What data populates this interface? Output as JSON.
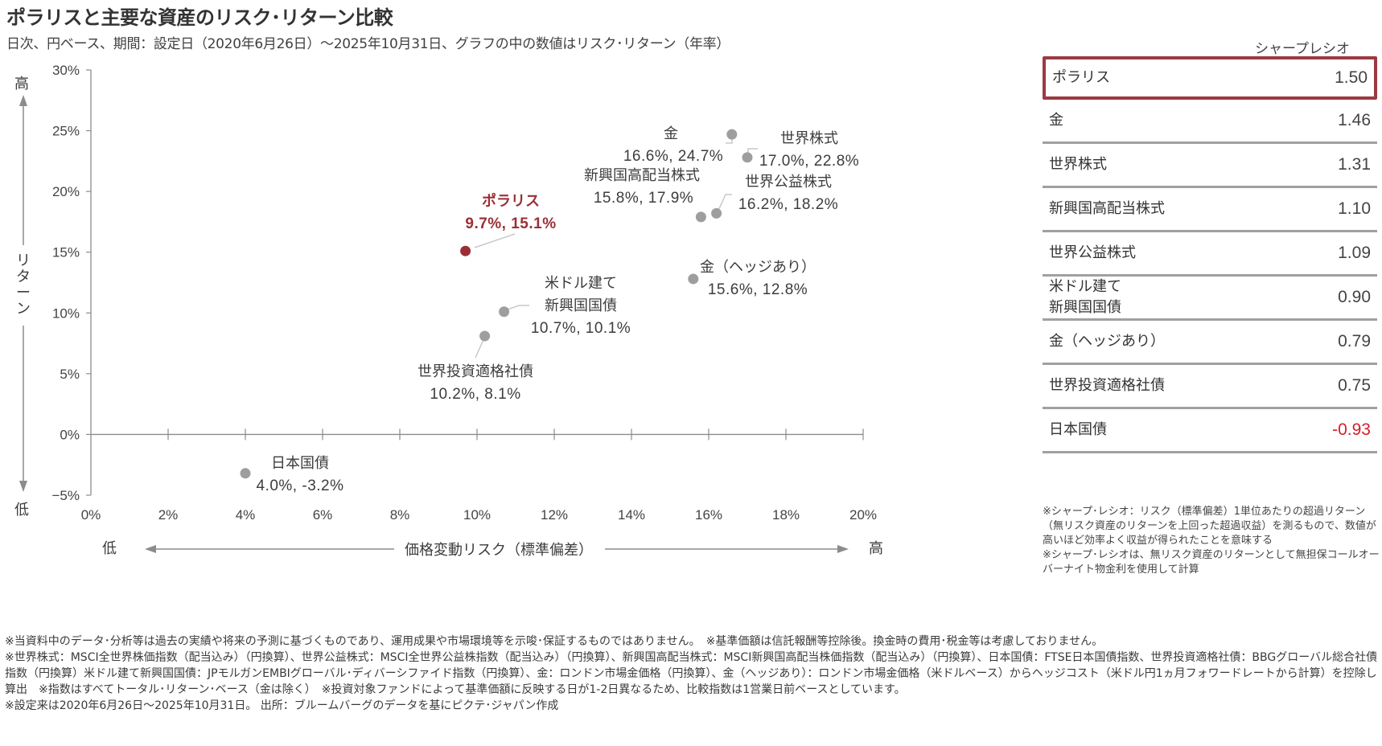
{
  "header": {
    "title": "ポラリスと主要な資産のリスク･リターン比較",
    "subtitle": "日次、円ベース、期間：設定日（2020年6月26日）～2025年10月31日、グラフの中の数値はリスク･リターン（年率）"
  },
  "colors": {
    "highlight": "#9b2f37",
    "point": "#9e9e9e",
    "axis": "#8c8c8c",
    "negative": "#d32027"
  },
  "chart_data": {
    "type": "scatter",
    "title": "ポラリスと主要な資産のリスク･リターン比較",
    "xlabel": "価格変動リスク（標準偏差）",
    "ylabel": "リターン",
    "x_low_label": "低",
    "x_high_label": "高",
    "y_low_label": "低",
    "y_high_label": "高",
    "xlim": [
      0,
      20
    ],
    "ylim": [
      -5,
      30
    ],
    "x_ticks": [
      0,
      2,
      4,
      6,
      8,
      10,
      12,
      14,
      16,
      18,
      20
    ],
    "x_tick_labels": [
      "0%",
      "2%",
      "4%",
      "6%",
      "8%",
      "10%",
      "12%",
      "14%",
      "16%",
      "18%",
      "20%"
    ],
    "y_ticks": [
      30,
      25,
      20,
      15,
      10,
      5,
      0,
      -5
    ],
    "y_tick_labels": [
      "30%",
      "25%",
      "20%",
      "15%",
      "10%",
      "5%",
      "0%",
      "−5%"
    ],
    "grid": false,
    "points": [
      {
        "name": "ポラリス",
        "name_lines": [
          "ポラリス"
        ],
        "risk": 9.7,
        "return": 15.1,
        "label": "9.7%, 15.1%",
        "highlight": true
      },
      {
        "name": "金",
        "name_lines": [
          "金"
        ],
        "risk": 16.6,
        "return": 24.7,
        "label": "16.6%, 24.7%",
        "highlight": false
      },
      {
        "name": "世界株式",
        "name_lines": [
          "世界株式"
        ],
        "risk": 17.0,
        "return": 22.8,
        "label": "17.0%, 22.8%",
        "highlight": false
      },
      {
        "name": "新興国高配当株式",
        "name_lines": [
          "新興国高配当株式"
        ],
        "risk": 15.8,
        "return": 17.9,
        "label": "15.8%, 17.9%",
        "highlight": false
      },
      {
        "name": "世界公益株式",
        "name_lines": [
          "世界公益株式"
        ],
        "risk": 16.2,
        "return": 18.2,
        "label": "16.2%, 18.2%",
        "highlight": false
      },
      {
        "name": "金（ヘッジあり）",
        "name_lines": [
          "金（ヘッジあり）"
        ],
        "risk": 15.6,
        "return": 12.8,
        "label": "15.6%, 12.8%",
        "highlight": false
      },
      {
        "name": "米ドル建て新興国国債",
        "name_lines": [
          "米ドル建て",
          "新興国国債"
        ],
        "risk": 10.7,
        "return": 10.1,
        "label": "10.7%, 10.1%",
        "highlight": false
      },
      {
        "name": "世界投資適格社債",
        "name_lines": [
          "世界投資適格社債"
        ],
        "risk": 10.2,
        "return": 8.1,
        "label": "10.2%, 8.1%",
        "highlight": false
      },
      {
        "name": "日本国債",
        "name_lines": [
          "日本国債"
        ],
        "risk": 4.0,
        "return": -3.2,
        "label": "4.0%, -3.2%",
        "highlight": false
      }
    ]
  },
  "sharpe": {
    "header": "シャープレシオ",
    "rows": [
      {
        "name_lines": [
          "ポラリス"
        ],
        "value": "1.50",
        "highlight": true,
        "negative": false
      },
      {
        "name_lines": [
          "金"
        ],
        "value": "1.46",
        "highlight": false,
        "negative": false
      },
      {
        "name_lines": [
          "世界株式"
        ],
        "value": "1.31",
        "highlight": false,
        "negative": false
      },
      {
        "name_lines": [
          "新興国高配当株式"
        ],
        "value": "1.10",
        "highlight": false,
        "negative": false
      },
      {
        "name_lines": [
          "世界公益株式"
        ],
        "value": "1.09",
        "highlight": false,
        "negative": false
      },
      {
        "name_lines": [
          "米ドル建て",
          "新興国国債"
        ],
        "value": "0.90",
        "highlight": false,
        "negative": false
      },
      {
        "name_lines": [
          "金（ヘッジあり）"
        ],
        "value": "0.79",
        "highlight": false,
        "negative": false
      },
      {
        "name_lines": [
          "世界投資適格社債"
        ],
        "value": "0.75",
        "highlight": false,
        "negative": false
      },
      {
        "name_lines": [
          "日本国債"
        ],
        "value": "-0.93",
        "highlight": false,
        "negative": true
      }
    ],
    "notes": [
      "※シャープ･レシオ：リスク（標準偏差）1単位あたりの超過リターン（無リスク資産のリターンを上回った超過収益）を測るもので、数値が高いほど効率よく収益が得られたことを意味する",
      "※シャープ･レシオは、無リスク資産のリターンとして無担保コールオーバーナイト物金利を使用して計算"
    ]
  },
  "footnotes": [
    "※当資料中のデータ･分析等は過去の実績や将来の予測に基づくものであり、運用成果や市場環境等を示唆･保証するものではありません。　※基準価額は信託報酬等控除後。換金時の費用･税金等は考慮しておりません。",
    "※世界株式：MSCI全世界株価指数（配当込み）（円換算）、世界公益株式：MSCI全世界公益株指数（配当込み）（円換算）、新興国高配当株式：MSCI新興国高配当株価指数（配当込み）（円換算）、日本国債：FTSE日本国債指数、世界投資適格社債：BBGグローバル総合社債指数（円換算）米ドル建て新興国国債：JPモルガンEMBIグローバル･ディバーシファイド指数（円換算）、金：ロンドン市場金価格（円換算）、金（ヘッジあり）：ロンドン市場金価格（米ドルベース）からヘッジコスト（米ドル円1ヵ月フォワードレートから計算）を控除し算出　※指数はすべてトータル･リターン･ベース（金は除く）　※投資対象ファンドによって基準価額に反映する日が1-2日異なるため、比較指数は1営業日前ベースとしています。",
    "※設定来は2020年6月26日～2025年10月31日。 出所：ブルームバーグのデータを基にピクテ･ジャパン作成"
  ]
}
